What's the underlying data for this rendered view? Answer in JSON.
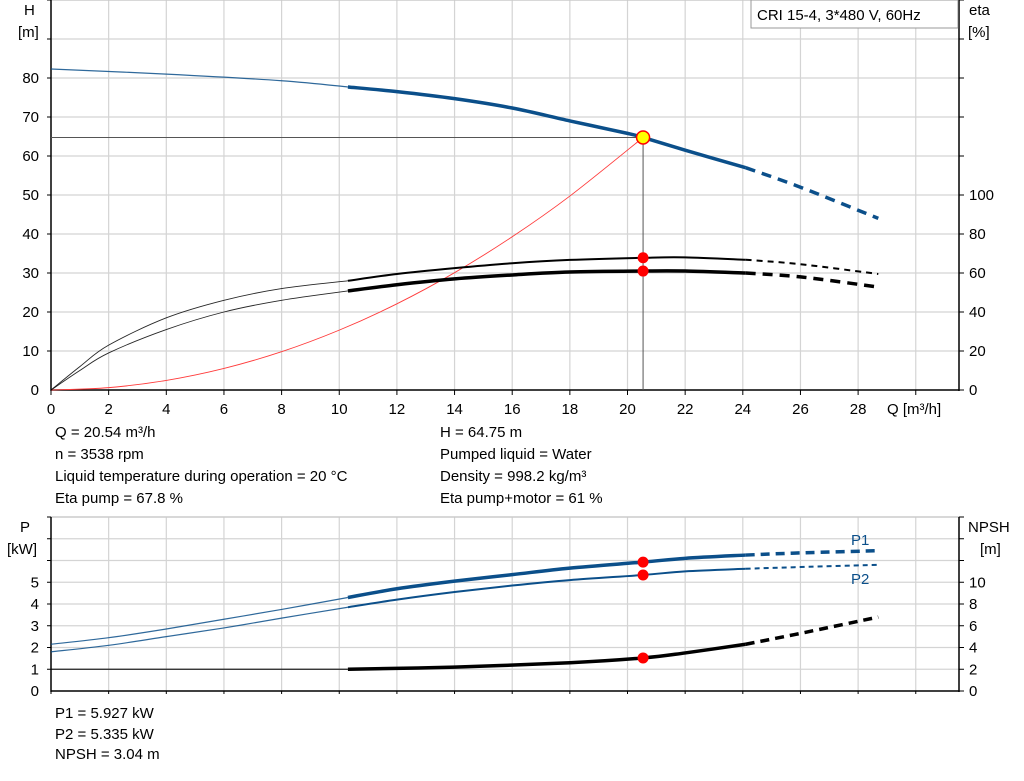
{
  "chart_data": [
    {
      "type": "line",
      "title": "CRI 15-4, 3*480 V, 60Hz",
      "xlabel": "Q [m³/h]",
      "ylabel": "H\n[m]",
      "ylabel_left": [
        "H",
        "[m]"
      ],
      "ylabel_right": [
        "eta",
        "[%]"
      ],
      "xlim": [
        0,
        31.5
      ],
      "ylim": [
        0,
        100
      ],
      "ylim_right": [
        0,
        200
      ],
      "x_ticks": [
        0,
        2,
        4,
        6,
        8,
        10,
        12,
        14,
        16,
        18,
        20,
        22,
        24,
        26,
        28
      ],
      "y_ticks": [
        0,
        10,
        20,
        30,
        40,
        50,
        60,
        70,
        80
      ],
      "y_ticks_right": [
        0,
        20,
        40,
        60,
        80,
        100
      ],
      "grid": true,
      "solid_range": [
        10.3,
        24.1
      ],
      "operating_point": {
        "Q": 20.54,
        "H": 64.75
      },
      "series": [
        {
          "key": "H",
          "axis": "left",
          "color": "#0b4f8a",
          "x": [
            0,
            4,
            8,
            10.3,
            12,
            14,
            16,
            18,
            20,
            20.54,
            22,
            24.1,
            26,
            28.7
          ],
          "y": [
            82.3,
            81,
            79.3,
            77.7,
            76.5,
            74.7,
            72.3,
            69,
            65.8,
            64.75,
            61.5,
            57,
            52,
            44
          ]
        },
        {
          "key": "eta_pump",
          "axis": "right",
          "color": "#000000",
          "x": [
            0,
            1,
            2,
            4,
            6,
            8,
            10.3,
            12,
            14,
            16,
            18,
            20.54,
            22,
            24.1,
            26,
            28.7
          ],
          "y": [
            0,
            12,
            23,
            37,
            46,
            52,
            56,
            59.5,
            62.5,
            65,
            66.7,
            67.8,
            68,
            66.8,
            64.5,
            59.5
          ]
        },
        {
          "key": "eta_pump_motor",
          "axis": "right",
          "color": "#000000",
          "x": [
            0,
            1,
            2,
            4,
            6,
            8,
            10.3,
            12,
            14,
            16,
            18,
            20.54,
            22,
            24.1,
            26,
            28.6
          ],
          "y": [
            0,
            10,
            19,
            31,
            40,
            46,
            50.8,
            54,
            57,
            59,
            60.5,
            61,
            61,
            60,
            58,
            53
          ]
        },
        {
          "key": "system",
          "axis": "left",
          "color": "#ff3b3b",
          "x": [
            0,
            2,
            4,
            6,
            8,
            10,
            12,
            14,
            16,
            18,
            20.54
          ],
          "y": [
            0,
            0.61,
            2.46,
            5.53,
            9.82,
            15.35,
            22.1,
            30.08,
            39.29,
            49.73,
            64.75
          ]
        }
      ],
      "markers": [
        {
          "Q": 20.54,
          "value": 67.8,
          "axis": "right"
        },
        {
          "Q": 20.54,
          "value": 61,
          "axis": "right"
        }
      ]
    },
    {
      "type": "line",
      "ylabel_left": [
        "P",
        "[kW]"
      ],
      "ylabel_right": [
        "NPSH",
        "[m]"
      ],
      "xlim": [
        0,
        31.5
      ],
      "ylim": [
        0,
        8
      ],
      "ylim_right": [
        0,
        16
      ],
      "y_ticks": [
        0,
        1,
        2,
        3,
        4,
        5
      ],
      "y_ticks_right": [
        0,
        2,
        4,
        6,
        8,
        10
      ],
      "grid": true,
      "series": [
        {
          "name": "P1",
          "key": "P1",
          "axis": "left",
          "color": "#0b4f8a",
          "x": [
            0,
            2,
            4,
            6,
            8,
            10.3,
            12,
            14,
            16,
            18,
            20.54,
            22,
            24.1,
            26,
            28.7
          ],
          "y": [
            2.15,
            2.45,
            2.85,
            3.3,
            3.75,
            4.3,
            4.7,
            5.05,
            5.35,
            5.65,
            5.927,
            6.1,
            6.25,
            6.35,
            6.45
          ]
        },
        {
          "name": "P2",
          "key": "P2",
          "axis": "left",
          "color": "#0b4f8a",
          "x": [
            0,
            2,
            4,
            6,
            8,
            10.3,
            12,
            14,
            16,
            18,
            20.54,
            22,
            24.1,
            26,
            28.7
          ],
          "y": [
            1.8,
            2.1,
            2.5,
            2.9,
            3.35,
            3.85,
            4.2,
            4.55,
            4.85,
            5.1,
            5.335,
            5.5,
            5.62,
            5.7,
            5.8
          ]
        },
        {
          "key": "NPSH",
          "axis": "right",
          "color": "#000000",
          "x": [
            0,
            10.3,
            14,
            18,
            20.54,
            22,
            24.1,
            26,
            28.7
          ],
          "y": [
            2,
            2,
            2.2,
            2.6,
            3.04,
            3.5,
            4.3,
            5.3,
            6.8
          ]
        }
      ],
      "markers": [
        {
          "Q": 20.54,
          "value": 5.927,
          "axis": "left"
        },
        {
          "Q": 20.54,
          "value": 5.335,
          "axis": "left"
        },
        {
          "Q": 20.54,
          "value": 3.04,
          "axis": "right"
        }
      ]
    }
  ],
  "info_top": {
    "left": [
      "Q = 20.54 m³/h",
      "n = 3538 rpm",
      "Liquid temperature during operation = 20 °C",
      "Eta pump = 67.8 %"
    ],
    "right": [
      "H = 64.75 m",
      "Pumped liquid = Water",
      "Density = 998.2 kg/m³",
      "Eta pump+motor = 61 %"
    ]
  },
  "info_bottom": [
    "P1 = 5.927 kW",
    "P2 = 5.335 kW",
    "NPSH = 3.04 m"
  ],
  "colors": {
    "head": "#0b4f8a",
    "marker": "#ff0000",
    "op_point": "#ffff00",
    "grid": "#d4d4d4"
  }
}
